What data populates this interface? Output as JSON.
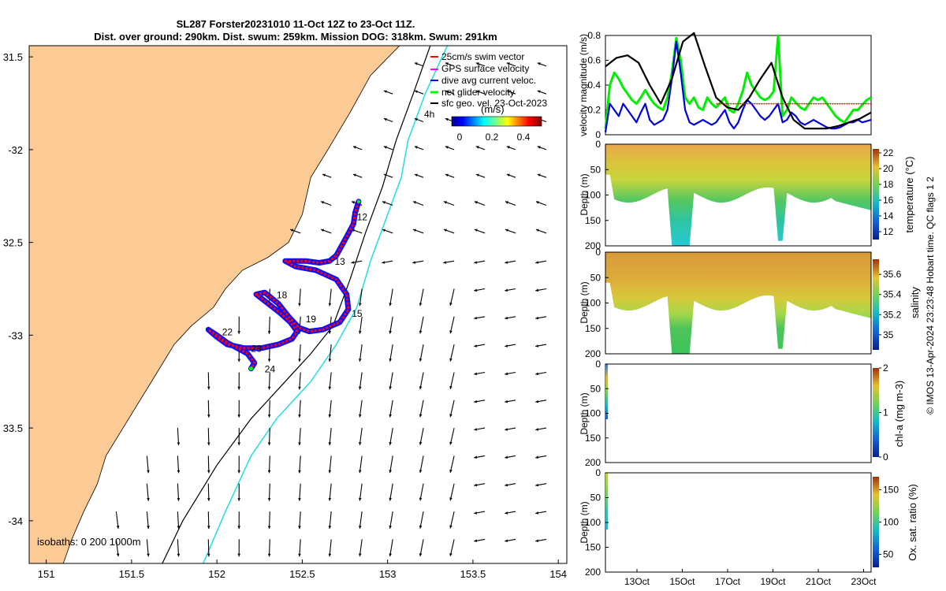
{
  "title": {
    "line1": "SL287 Forster20231010 11-Oct 12Z to 23-Oct 11Z.",
    "line2": "Dist. over ground: 290km. Dist. swum: 259km. Mission DOG: 318km. Swum: 291km"
  },
  "credit": "© IMOS 13-Apr-2024 23:23:48 Hobart time. QC flags 1  2",
  "colors": {
    "land": "#fccb96",
    "coast": "#000000",
    "isobath_200": "#000000",
    "isobath_1000": "#22dddd",
    "track_swim": "#ff0000",
    "track_current": "#0000ff",
    "track_glider": "#00ff00",
    "gps": "#ff00ff"
  },
  "chart_data": [
    {
      "type": "map",
      "id": "track-map",
      "xlim": [
        150.9,
        154.05
      ],
      "ylim": [
        -34.23,
        -31.44
      ],
      "xticks": [
        151,
        151.5,
        152,
        152.5,
        153,
        153.5,
        154
      ],
      "xtick_labels": [
        "151",
        "151.5",
        "152",
        "152.5",
        "153",
        "153.5",
        "154"
      ],
      "yticks": [
        -31.5,
        -32,
        -32.5,
        -33,
        -33.5,
        -34
      ],
      "ytick_labels": [
        "31.5",
        "-32",
        "32.5",
        "-33",
        "33.5",
        "-34"
      ],
      "legend": {
        "position": "top-right",
        "entries": [
          "25cm/s swim vector",
          "GPS surface velocity",
          "dive avg current veloc.",
          "net glider velocity",
          "sfc geo. vel. 23-Oct-2023"
        ]
      },
      "vector_label": "4h",
      "colorbar": {
        "label": "(m/s)",
        "range": [
          0,
          0.5
        ],
        "ticks": [
          "0",
          "0.2",
          "0.4"
        ],
        "position": "top-right"
      },
      "isobath_label": "isobaths: 0   200  1000m",
      "day_labels": [
        {
          "text": "12",
          "lon": 152.82,
          "lat": -32.38
        },
        {
          "text": "13",
          "lon": 152.69,
          "lat": -32.62
        },
        {
          "text": "15",
          "lon": 152.79,
          "lat": -32.9
        },
        {
          "text": "18",
          "lon": 152.35,
          "lat": -32.8
        },
        {
          "text": "19",
          "lon": 152.52,
          "lat": -32.93
        },
        {
          "text": "22",
          "lon": 152.03,
          "lat": -33.0
        },
        {
          "text": "23",
          "lon": 152.2,
          "lat": -33.09
        },
        {
          "text": "24",
          "lon": 152.28,
          "lat": -33.2
        }
      ],
      "track": [
        [
          152.83,
          -32.28
        ],
        [
          152.81,
          -32.34
        ],
        [
          152.8,
          -32.4
        ],
        [
          152.76,
          -32.47
        ],
        [
          152.73,
          -32.52
        ],
        [
          152.7,
          -32.57
        ],
        [
          152.66,
          -32.6
        ],
        [
          152.6,
          -32.61
        ],
        [
          152.52,
          -32.6
        ],
        [
          152.45,
          -32.6
        ],
        [
          152.4,
          -32.6
        ],
        [
          152.46,
          -32.63
        ],
        [
          152.58,
          -32.65
        ],
        [
          152.7,
          -32.7
        ],
        [
          152.76,
          -32.78
        ],
        [
          152.77,
          -32.86
        ],
        [
          152.72,
          -32.93
        ],
        [
          152.62,
          -32.97
        ],
        [
          152.54,
          -32.98
        ],
        [
          152.48,
          -32.96
        ],
        [
          152.42,
          -32.9
        ],
        [
          152.36,
          -32.83
        ],
        [
          152.28,
          -32.77
        ],
        [
          152.23,
          -32.78
        ],
        [
          152.3,
          -32.83
        ],
        [
          152.37,
          -32.88
        ],
        [
          152.43,
          -32.93
        ],
        [
          152.47,
          -32.98
        ],
        [
          152.44,
          -33.02
        ],
        [
          152.36,
          -33.05
        ],
        [
          152.26,
          -33.07
        ],
        [
          152.16,
          -33.07
        ],
        [
          152.06,
          -33.05
        ],
        [
          152.0,
          -33.01
        ],
        [
          151.95,
          -32.97
        ],
        [
          152.0,
          -33.0
        ],
        [
          152.06,
          -33.04
        ],
        [
          152.12,
          -33.07
        ],
        [
          152.18,
          -33.1
        ],
        [
          152.22,
          -33.15
        ],
        [
          152.2,
          -33.18
        ]
      ]
    },
    {
      "type": "line",
      "id": "velocity-panel",
      "ylabel": "velocity magnitude (m/s)",
      "ylim": [
        0,
        0.8
      ],
      "yticks": [
        "0",
        "0.2",
        "0.4",
        "0.6",
        "0.8"
      ],
      "xlim": [
        0,
        12
      ],
      "series": [
        {
          "name": "net glider velocity",
          "color": "#00ee00",
          "x": [
            0,
            0.2,
            0.4,
            0.6,
            0.8,
            1,
            1.2,
            1.4,
            1.6,
            1.8,
            2,
            2.2,
            2.4,
            2.6,
            2.8,
            3,
            3.2,
            3.4,
            3.6,
            3.8,
            4,
            4.2,
            4.4,
            4.6,
            4.8,
            5,
            5.2,
            5.4,
            5.6,
            5.8,
            6,
            6.2,
            6.4,
            6.6,
            6.8,
            7,
            7.2,
            7.4,
            7.6,
            7.8,
            8,
            8.2,
            8.4,
            8.6,
            8.8,
            9,
            9.2,
            9.4,
            9.6,
            9.8,
            10,
            10.2,
            10.4,
            10.6,
            10.8,
            11,
            11.2,
            11.4,
            11.6,
            11.8,
            12
          ],
          "values": [
            0.05,
            0.4,
            0.5,
            0.45,
            0.38,
            0.33,
            0.28,
            0.25,
            0.3,
            0.36,
            0.3,
            0.25,
            0.22,
            0.2,
            0.3,
            0.5,
            0.78,
            0.6,
            0.3,
            0.25,
            0.3,
            0.22,
            0.2,
            0.3,
            0.25,
            0.22,
            0.26,
            0.3,
            0.2,
            0.18,
            0.25,
            0.35,
            0.5,
            0.4,
            0.35,
            0.3,
            0.28,
            0.3,
            0.35,
            0.8,
            0.15,
            0.2,
            0.3,
            0.26,
            0.22,
            0.2,
            0.25,
            0.3,
            0.28,
            0.3,
            0.25,
            0.2,
            0.15,
            0.12,
            0.1,
            0.15,
            0.2,
            0.2,
            0.24,
            0.28,
            0.3
          ]
        },
        {
          "name": "dive avg current veloc.",
          "color": "#0000dd",
          "x": [
            0,
            0.2,
            0.4,
            0.6,
            0.8,
            1,
            1.2,
            1.4,
            1.6,
            1.8,
            2,
            2.2,
            2.4,
            2.6,
            2.8,
            3,
            3.2,
            3.4,
            3.6,
            3.8,
            4,
            4.2,
            4.4,
            4.6,
            4.8,
            5,
            5.2,
            5.4,
            5.6,
            5.8,
            6,
            6.2,
            6.4,
            6.6,
            6.8,
            7,
            7.2,
            7.4,
            7.6,
            7.8,
            8,
            8.2,
            8.4,
            8.6,
            8.8,
            9,
            9.2,
            9.4,
            9.6,
            9.8,
            10,
            10.2,
            10.4,
            10.6,
            10.8,
            11,
            11.2,
            11.4,
            11.6,
            11.8,
            12
          ],
          "values": [
            0.02,
            0.25,
            0.2,
            0.15,
            0.25,
            0.2,
            0.15,
            0.1,
            0.18,
            0.25,
            0.12,
            0.08,
            0.1,
            0.12,
            0.2,
            0.45,
            0.75,
            0.5,
            0.2,
            0.1,
            0.08,
            0.1,
            0.12,
            0.1,
            0.08,
            0.1,
            0.15,
            0.2,
            0.1,
            0.05,
            0.1,
            0.2,
            0.28,
            0.25,
            0.2,
            0.15,
            0.12,
            0.15,
            0.2,
            0.25,
            0.1,
            0.12,
            0.18,
            0.15,
            0.1,
            0.08,
            0.1,
            0.12,
            0.1,
            0.08,
            0.06,
            0.05,
            0.05,
            0.06,
            0.08,
            0.1,
            0.1,
            0.12,
            0.1,
            0.11,
            0.12
          ]
        },
        {
          "name": "sfc geo. vel.",
          "color": "#000000",
          "x": [
            0,
            0.5,
            1,
            1.5,
            2,
            2.5,
            3,
            3.5,
            4,
            4.5,
            5,
            5.5,
            6,
            6.5,
            7,
            7.5,
            8,
            8.5,
            9,
            9.5,
            10,
            10.5,
            11,
            11.5,
            12
          ],
          "values": [
            0.55,
            0.62,
            0.64,
            0.58,
            0.4,
            0.25,
            0.45,
            0.75,
            0.82,
            0.55,
            0.3,
            0.22,
            0.2,
            0.3,
            0.45,
            0.58,
            0.3,
            0.12,
            0.05,
            0.05,
            0.05,
            0.07,
            0.1,
            0.13,
            0.18
          ]
        },
        {
          "name": "25cm/s swim vector",
          "color": "#ff0000",
          "x": [
            5,
            12
          ],
          "values": [
            0.25,
            0.25
          ]
        }
      ]
    },
    {
      "type": "heatmap",
      "id": "temperature-panel",
      "ylabel": "Depth (m)",
      "ylim": [
        0,
        200
      ],
      "yticks": [
        "0",
        "50",
        "100",
        "150",
        "200"
      ],
      "colorbar_label": "temperature (°C)",
      "colorbar_range": [
        11,
        22.5
      ],
      "colorbar_ticks": [
        "12",
        "14",
        "16",
        "18",
        "20",
        "22"
      ]
    },
    {
      "type": "heatmap",
      "id": "salinity-panel",
      "ylabel": "Depth (m)",
      "ylim": [
        0,
        200
      ],
      "yticks": [
        "0",
        "50",
        "100",
        "150",
        "200"
      ],
      "colorbar_label": "salinity",
      "colorbar_range": [
        34.85,
        35.75
      ],
      "colorbar_ticks": [
        "35",
        "35.2",
        "35.4",
        "35.6"
      ]
    },
    {
      "type": "heatmap",
      "id": "chla-panel",
      "ylabel": "Depth (m)",
      "ylim": [
        0,
        200
      ],
      "yticks": [
        "0",
        "50",
        "100",
        "150",
        "200"
      ],
      "colorbar_label": "chl-a (mg m-3)",
      "colorbar_range": [
        0,
        2
      ],
      "colorbar_ticks": [
        "0",
        "1",
        "2"
      ]
    },
    {
      "type": "heatmap",
      "id": "oxygen-panel",
      "ylabel": "Depth (m)",
      "ylim": [
        0,
        200
      ],
      "yticks": [
        "0",
        "50",
        "100",
        "150",
        "200"
      ],
      "colorbar_label": "Ox. sat. ratio (%)",
      "colorbar_range": [
        30,
        170
      ],
      "colorbar_ticks": [
        "50",
        "100",
        "150"
      ],
      "xtick_labels": [
        "13Oct",
        "15Oct",
        "17Oct",
        "19Oct",
        "21Oct",
        "23Oct"
      ]
    }
  ]
}
